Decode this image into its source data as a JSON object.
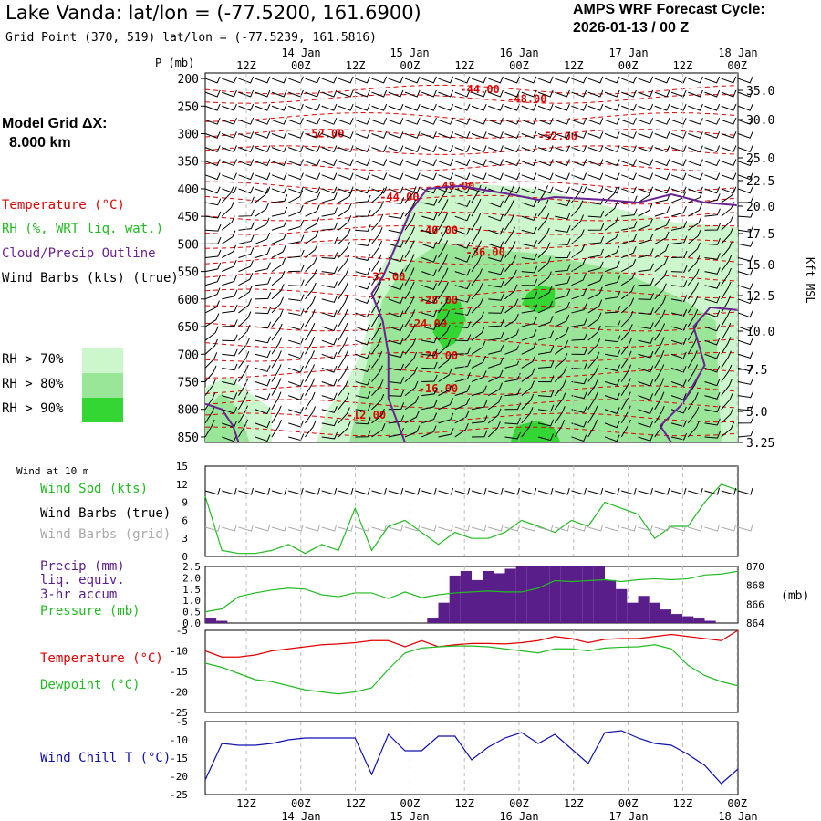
{
  "header": {
    "title": "Lake Vanda:  lat/lon = (-77.5200, 161.6900)",
    "grid_point": "Grid Point (370, 519) lat/lon = (-77.5239, 161.5816)",
    "cycle_line1": "AMPS WRF Forecast Cycle:",
    "cycle_line2": "2026-01-13 / 00  Z"
  },
  "left_panel": {
    "model_grid_label": "Model Grid ΔX:",
    "model_grid_value": "8.000 km",
    "legend_temperature": "Temperature (°C)",
    "legend_rh": "RH (%, WRT liq. wat.)",
    "legend_cloud": "Cloud/Precip Outline",
    "legend_wind": "Wind Barbs (kts) (true)",
    "rh_levels": [
      "RH > 70%",
      "RH > 80%",
      "RH > 90%"
    ]
  },
  "colors": {
    "temperature": "#e00000",
    "rh70": "#ccf7cc",
    "rh80": "#99e699",
    "rh90": "#33d633",
    "cloud": "#6b2393",
    "precip": "#5a1e8a",
    "wind_speed": "#22bb22",
    "pressure": "#22bb22",
    "dewpoint": "#22bb22",
    "wind_chill": "#1010b0",
    "grid_barbs": "#aaaaaa"
  },
  "time_axis": {
    "hour_labels": [
      "12Z",
      "00Z",
      "12Z",
      "00Z",
      "12Z",
      "00Z",
      "12Z",
      "00Z",
      "12Z",
      "00Z"
    ],
    "date_labels": [
      "14 Jan",
      "15 Jan",
      "16 Jan",
      "17 Jan",
      "18 Jan"
    ]
  },
  "chart_data": [
    {
      "type": "area",
      "panel": "cross-section",
      "ylabel_left": "P (mb)",
      "ylabel_right": "Kft MSL",
      "pressure_ticks": [
        200,
        250,
        300,
        350,
        400,
        450,
        500,
        550,
        600,
        650,
        700,
        750,
        800,
        850
      ],
      "height_ticks": [
        "35.0",
        "30.0",
        "25.0",
        "22.5",
        "20.0",
        "17.5",
        "15.0",
        "12.5",
        "10.0",
        "7.5",
        "5.0",
        "3.25"
      ],
      "ylim": [
        200,
        860
      ],
      "temperature_labels": [
        {
          "label": "-44.00",
          "t": 49.5,
          "p": 220
        },
        {
          "label": "-48.00",
          "t": 58,
          "p": 237
        },
        {
          "label": "-52.00",
          "t": 21.5,
          "p": 300
        },
        {
          "label": "-52.00",
          "t": 63.5,
          "p": 305
        },
        {
          "label": "-48.00",
          "t": 45,
          "p": 395
        },
        {
          "label": "-44.00",
          "t": 35,
          "p": 415
        },
        {
          "label": "-40.00",
          "t": 42,
          "p": 475
        },
        {
          "label": "-36.00",
          "t": 50.5,
          "p": 515
        },
        {
          "label": "-32.00",
          "t": 32.5,
          "p": 560
        },
        {
          "label": "-28.00",
          "t": 42,
          "p": 602
        },
        {
          "label": "-24.00",
          "t": 40,
          "p": 645
        },
        {
          "label": "-20.00",
          "t": 42,
          "p": 703
        },
        {
          "label": "-16.00",
          "t": 42,
          "p": 762
        },
        {
          "label": "-12.00",
          "t": 29,
          "p": 810
        }
      ]
    },
    {
      "type": "line",
      "panel": "wind-10m",
      "label": "Wind at 10 m",
      "legend": [
        "Wind Spd (kts)",
        "Wind Barbs (true)",
        "Wind Barbs (grid)"
      ],
      "yticks": [
        0,
        3,
        6,
        9,
        12,
        15
      ],
      "ylim": [
        0,
        15
      ],
      "x": [
        0,
        3,
        6,
        9,
        12,
        15,
        18,
        21,
        24,
        27,
        30,
        33,
        36,
        39,
        42,
        45,
        48,
        51,
        54,
        57,
        60,
        63,
        66,
        69,
        72,
        75,
        78,
        81,
        84,
        87,
        90,
        93,
        96
      ],
      "series": [
        {
          "name": "Wind Spd (kts)",
          "values": [
            10,
            1,
            0.5,
            0.5,
            1,
            2,
            0.5,
            2,
            1,
            8,
            1,
            5,
            6,
            4,
            2,
            4,
            3,
            3,
            4,
            6,
            5,
            4,
            6,
            5,
            9,
            8,
            7,
            3,
            5,
            5,
            9,
            12,
            11
          ]
        }
      ]
    },
    {
      "type": "bar",
      "panel": "precip-pressure",
      "legend": [
        "Precip (mm)",
        "liq. equiv.",
        "3-hr accum",
        "Pressure (mb)"
      ],
      "ylim_precip": [
        0,
        2.5
      ],
      "precip_ticks": [
        "2.5",
        "2.0",
        "1.5",
        "1.0",
        "0.5",
        "0.0"
      ],
      "ylim_pressure": [
        864,
        870
      ],
      "pressure_ticks": [
        870,
        868,
        866,
        864
      ],
      "pressure_unit": "(mb)",
      "precip_values": [
        0.2,
        0.1,
        0,
        0,
        0,
        0,
        0,
        0,
        0,
        0,
        0,
        0,
        0,
        0,
        0,
        0,
        0,
        0,
        0,
        0,
        0.2,
        0.9,
        2.1,
        2.3,
        1.9,
        2.3,
        2.2,
        2.4,
        2.5,
        2.5,
        2.5,
        2.5,
        2.5,
        2.5,
        2.5,
        2.5,
        1.9,
        1.5,
        0.9,
        1.2,
        0.9,
        0.6,
        0.4,
        0.3,
        0.2,
        0.1,
        0,
        0
      ],
      "pressure_x": [
        0,
        3,
        6,
        9,
        12,
        15,
        18,
        21,
        24,
        27,
        30,
        33,
        36,
        39,
        42,
        45,
        48,
        51,
        54,
        57,
        60,
        63,
        66,
        69,
        72,
        75,
        78,
        81,
        84,
        87,
        90,
        93,
        96
      ],
      "pressure_values": [
        865.2,
        865.5,
        866.8,
        867.2,
        867.5,
        867.7,
        867.6,
        867.0,
        866.8,
        867.2,
        867.2,
        866.6,
        867.3,
        866.7,
        867.0,
        867.2,
        867.3,
        867.4,
        867.3,
        867.3,
        867.7,
        868.5,
        868.4,
        868.5,
        868.6,
        868.4,
        868.6,
        868.7,
        868.6,
        868.7,
        869.1,
        869.2,
        869.5
      ]
    },
    {
      "type": "line",
      "panel": "temperature-dewpoint",
      "legend": [
        "Temperature (°C)",
        "Dewpoint (°C)"
      ],
      "yticks": [
        -5,
        -10,
        -15,
        -20,
        -25
      ],
      "ylim": [
        -25,
        -5
      ],
      "x": [
        0,
        3,
        6,
        9,
        12,
        15,
        18,
        21,
        24,
        27,
        30,
        33,
        36,
        39,
        42,
        45,
        48,
        51,
        54,
        57,
        60,
        63,
        66,
        69,
        72,
        75,
        78,
        81,
        84,
        87,
        90,
        93,
        96
      ],
      "series": [
        {
          "name": "Temperature (°C)",
          "values": [
            -10,
            -11.5,
            -11.5,
            -11,
            -10,
            -9.5,
            -9,
            -8.5,
            -8.3,
            -8,
            -7.5,
            -7.5,
            -9,
            -7.5,
            -9,
            -8.5,
            -8.2,
            -8.2,
            -8.3,
            -8,
            -7.5,
            -6.5,
            -7,
            -8,
            -7.2,
            -7,
            -7,
            -6.5,
            -6,
            -6.5,
            -7,
            -7.5,
            -5
          ]
        },
        {
          "name": "Dewpoint (°C)",
          "values": [
            -13,
            -14,
            -15.5,
            -17,
            -17.5,
            -18.5,
            -19.5,
            -20,
            -20.5,
            -20,
            -19,
            -14.5,
            -10.5,
            -9.3,
            -9,
            -8.8,
            -8.8,
            -9,
            -9.5,
            -10,
            -10.5,
            -9.5,
            -9.5,
            -10,
            -9.3,
            -9.1,
            -9,
            -8.5,
            -9.5,
            -13.5,
            -16,
            -17.5,
            -18.5
          ]
        }
      ]
    },
    {
      "type": "line",
      "panel": "wind-chill",
      "legend": [
        "Wind Chill T (°C)"
      ],
      "yticks": [
        -5,
        -10,
        -15,
        -20,
        -25
      ],
      "ylim": [
        -25,
        -5
      ],
      "x": [
        0,
        3,
        6,
        9,
        12,
        15,
        18,
        21,
        24,
        27,
        30,
        33,
        36,
        39,
        42,
        45,
        48,
        51,
        54,
        57,
        60,
        63,
        66,
        69,
        72,
        75,
        78,
        81,
        84,
        87,
        90,
        93,
        96
      ],
      "series": [
        {
          "name": "Wind Chill T (°C)",
          "values": [
            -21,
            -11,
            -11.5,
            -11.5,
            -11,
            -10,
            -9.5,
            -9.5,
            -9.5,
            -9.5,
            -19.5,
            -8.5,
            -13,
            -13,
            -9,
            -9,
            -15.5,
            -12,
            -9.5,
            -8,
            -11,
            -8.5,
            -12.5,
            -16.5,
            -8,
            -7.5,
            -9.5,
            -11,
            -11.5,
            -14,
            -17,
            -22,
            -18
          ]
        }
      ]
    }
  ]
}
